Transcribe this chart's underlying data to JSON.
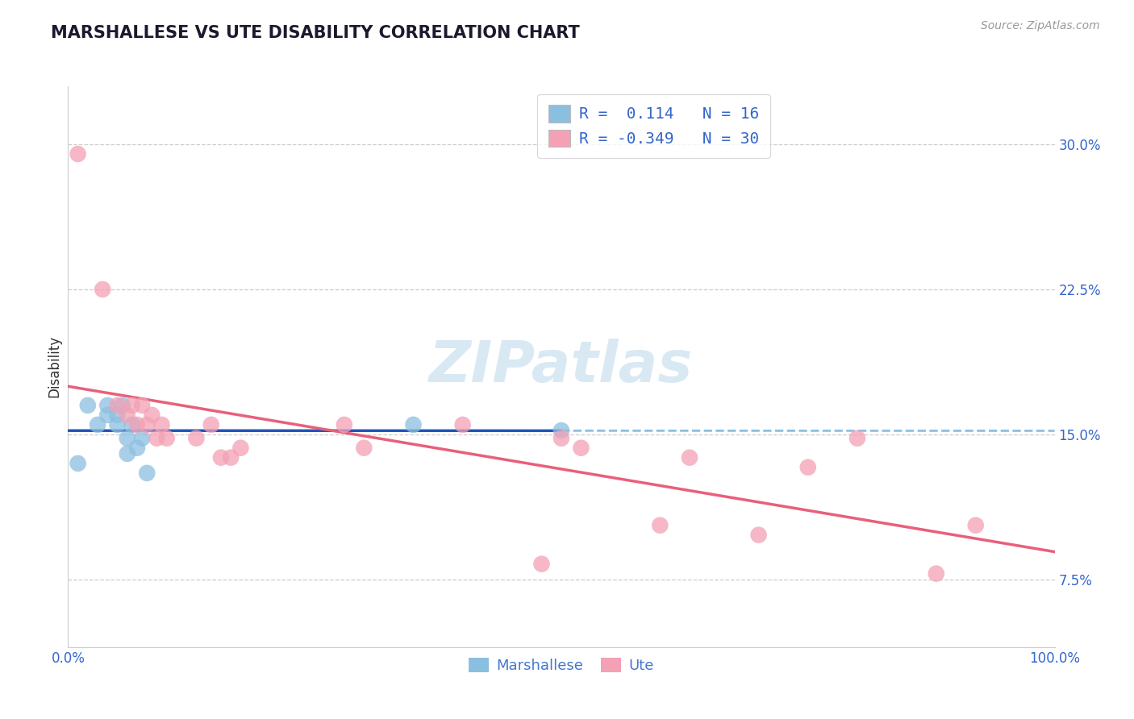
{
  "title": "MARSHALLESE VS UTE DISABILITY CORRELATION CHART",
  "source": "Source: ZipAtlas.com",
  "ylabel": "Disability",
  "xlim": [
    0.0,
    1.0
  ],
  "ylim": [
    0.04,
    0.33
  ],
  "yticks": [
    0.075,
    0.15,
    0.225,
    0.3
  ],
  "ytick_labels": [
    "7.5%",
    "15.0%",
    "22.5%",
    "30.0%"
  ],
  "marshallese_x": [
    0.01,
    0.02,
    0.03,
    0.04,
    0.04,
    0.05,
    0.05,
    0.055,
    0.06,
    0.06,
    0.065,
    0.07,
    0.075,
    0.08,
    0.35,
    0.5
  ],
  "marshallese_y": [
    0.135,
    0.165,
    0.155,
    0.16,
    0.165,
    0.155,
    0.16,
    0.165,
    0.14,
    0.148,
    0.155,
    0.143,
    0.148,
    0.13,
    0.155,
    0.152
  ],
  "ute_x": [
    0.01,
    0.035,
    0.05,
    0.06,
    0.065,
    0.07,
    0.075,
    0.08,
    0.085,
    0.09,
    0.095,
    0.1,
    0.13,
    0.145,
    0.155,
    0.165,
    0.175,
    0.28,
    0.3,
    0.4,
    0.48,
    0.5,
    0.52,
    0.6,
    0.63,
    0.7,
    0.75,
    0.8,
    0.88,
    0.92
  ],
  "ute_y": [
    0.295,
    0.225,
    0.165,
    0.16,
    0.165,
    0.155,
    0.165,
    0.155,
    0.16,
    0.148,
    0.155,
    0.148,
    0.148,
    0.155,
    0.138,
    0.138,
    0.143,
    0.155,
    0.143,
    0.155,
    0.083,
    0.148,
    0.143,
    0.103,
    0.138,
    0.098,
    0.133,
    0.148,
    0.078,
    0.103
  ],
  "marshallese_color": "#8bbfe0",
  "ute_color": "#f4a0b5",
  "blue_line_color": "#2255bb",
  "pink_line_color": "#e8607a",
  "dashed_line_color": "#8bbfe0",
  "watermark": "ZIPatlas",
  "watermark_color": "#d0e4f0",
  "background_color": "#ffffff",
  "grid_color": "#cccccc",
  "legend_r_color": "#333355",
  "legend_val_color": "#3366cc",
  "bottom_legend_color": "#4477cc"
}
